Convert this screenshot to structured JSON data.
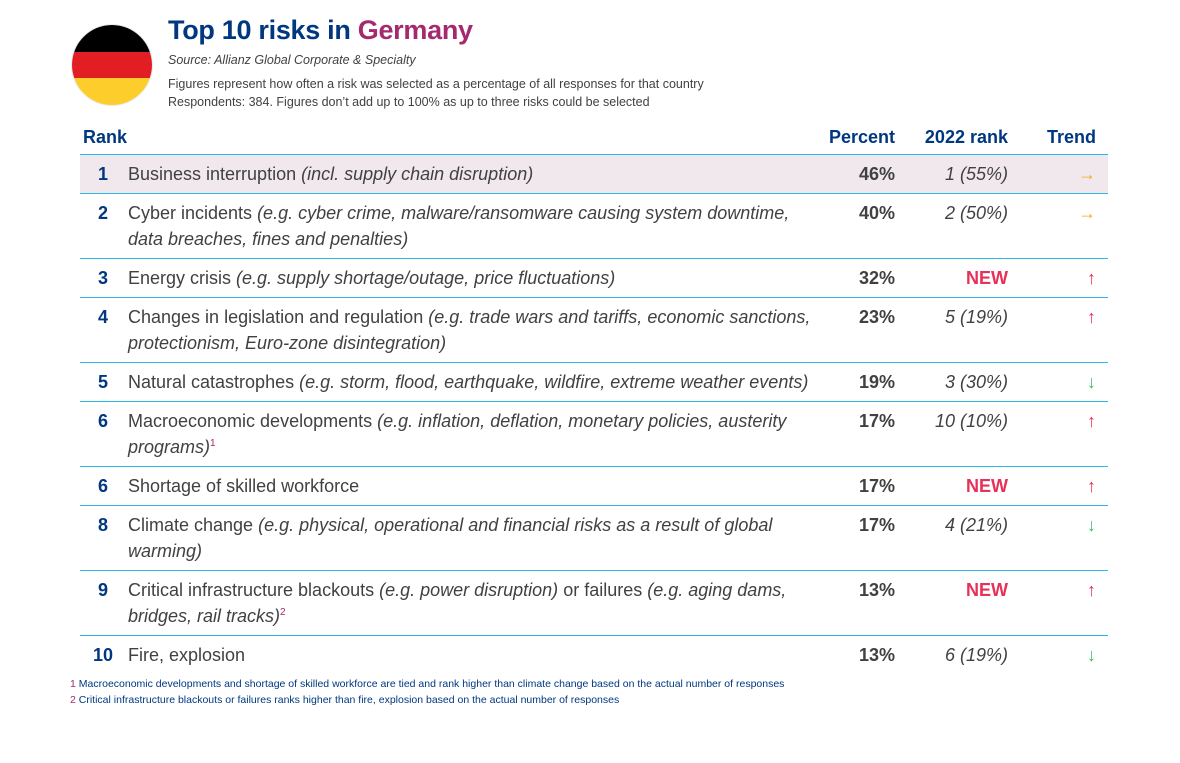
{
  "header": {
    "title_prefix": "Top 10 risks in ",
    "country": "Germany",
    "source": "Source: Allianz Global Corporate & Specialty",
    "note1": "Figures represent how often a risk was selected as a percentage of all responses for that country",
    "note2": "Respondents: 384. Figures don’t add up to 100% as up to three risks could be selected"
  },
  "flag_colors": [
    "#000000",
    "#e31d24",
    "#fdcd2c"
  ],
  "columns": {
    "rank": "Rank",
    "percent": "Percent",
    "prev": "2022 rank",
    "trend": "Trend"
  },
  "trend_colors": {
    "same": "#f5a623",
    "up": "#e8305a",
    "down": "#3dbb6d"
  },
  "rows": [
    {
      "rank": "1",
      "segments": [
        {
          "text": "Business interruption ",
          "italic": false
        },
        {
          "text": "(incl. supply chain disruption)",
          "italic": true
        }
      ],
      "sup": "",
      "percent": "46%",
      "prev": "1 (55%)",
      "new": false,
      "trend": "same",
      "trend_glyph": "→"
    },
    {
      "rank": "2",
      "segments": [
        {
          "text": "Cyber incidents ",
          "italic": false
        },
        {
          "text": "(e.g. cyber crime, malware/ransomware causing system downtime, data breaches, fines and penalties)",
          "italic": true
        }
      ],
      "sup": "",
      "percent": "40%",
      "prev": "2 (50%)",
      "new": false,
      "trend": "same",
      "trend_glyph": "→"
    },
    {
      "rank": "3",
      "segments": [
        {
          "text": "Energy crisis ",
          "italic": false
        },
        {
          "text": "(e.g. supply shortage/outage, price fluctuations)",
          "italic": true
        }
      ],
      "sup": "",
      "percent": "32%",
      "prev": "NEW",
      "new": true,
      "trend": "up",
      "trend_glyph": "↑"
    },
    {
      "rank": "4",
      "segments": [
        {
          "text": "Changes in legislation and regulation ",
          "italic": false
        },
        {
          "text": "(e.g. trade wars and tariffs, economic sanctions, protectionism, Euro-zone disintegration)",
          "italic": true
        }
      ],
      "sup": "",
      "percent": "23%",
      "prev": "5 (19%)",
      "new": false,
      "trend": "up",
      "trend_glyph": "↑"
    },
    {
      "rank": "5",
      "segments": [
        {
          "text": "Natural catastrophes ",
          "italic": false
        },
        {
          "text": "(e.g. storm, flood, earthquake, wildfire, extreme weather events)",
          "italic": true
        }
      ],
      "sup": "",
      "percent": "19%",
      "prev": "3 (30%)",
      "new": false,
      "trend": "down",
      "trend_glyph": "↓"
    },
    {
      "rank": "6",
      "segments": [
        {
          "text": "Macroeconomic developments ",
          "italic": false
        },
        {
          "text": "(e.g. inflation, deflation, monetary policies, austerity programs)",
          "italic": true
        }
      ],
      "sup": "1",
      "percent": "17%",
      "prev": "10 (10%)",
      "new": false,
      "trend": "up",
      "trend_glyph": "↑"
    },
    {
      "rank": "6",
      "segments": [
        {
          "text": "Shortage of skilled workforce",
          "italic": false
        }
      ],
      "sup": "",
      "percent": "17%",
      "prev": "NEW",
      "new": true,
      "trend": "up",
      "trend_glyph": "↑"
    },
    {
      "rank": "8",
      "segments": [
        {
          "text": "Climate change ",
          "italic": false
        },
        {
          "text": "(e.g. physical, operational and financial risks as a result of global warming)",
          "italic": true
        }
      ],
      "sup": "",
      "percent": "17%",
      "prev": "4 (21%)",
      "new": false,
      "trend": "down",
      "trend_glyph": "↓"
    },
    {
      "rank": "9",
      "segments": [
        {
          "text": "Critical infrastructure blackouts ",
          "italic": false
        },
        {
          "text": "(e.g. power disruption)",
          "italic": true
        },
        {
          "text": " or failures ",
          "italic": false
        },
        {
          "text": "(e.g. aging dams, bridges, rail tracks)",
          "italic": true
        }
      ],
      "sup": "2",
      "percent": "13%",
      "prev": "NEW",
      "new": true,
      "trend": "up",
      "trend_glyph": "↑"
    },
    {
      "rank": "10",
      "segments": [
        {
          "text": "Fire, explosion",
          "italic": false
        }
      ],
      "sup": "",
      "percent": "13%",
      "prev": "6 (19%)",
      "new": false,
      "trend": "down",
      "trend_glyph": "↓"
    }
  ],
  "footnotes": [
    {
      "num": "1",
      "text": "Macroeconomic developments and shortage of skilled workforce are tied and rank higher than climate change based on the actual number of responses"
    },
    {
      "num": "2",
      "text": "Critical infrastructure blackouts or failures ranks higher than fire, explosion based on the actual number of responses"
    }
  ]
}
